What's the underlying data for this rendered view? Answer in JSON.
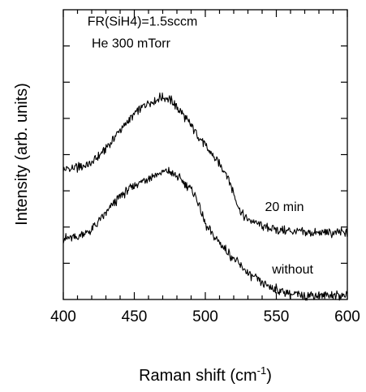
{
  "chart_data": {
    "type": "line",
    "xlabel": "Raman shift (cm",
    "xlabel_sup": "-1",
    "xlabel_close": ")",
    "ylabel": "Intensity (arb. units)",
    "xlim": [
      400,
      600
    ],
    "ylim": [
      0,
      1
    ],
    "x_ticks": [
      400,
      450,
      500,
      550,
      600
    ],
    "x_minor_step": 10,
    "y_tick_count": 8,
    "y_tick_labels_shown": false,
    "grid": false,
    "legend": "none",
    "annotations": [
      {
        "text": "FR(SiH4)=1.5sccm",
        "x": 417,
        "y": 0.945
      },
      {
        "text": "He 300 mTorr",
        "x": 420,
        "y": 0.87
      }
    ],
    "series": [
      {
        "name": "20 min",
        "label_pos": [
          542,
          0.305
        ],
        "x": [
          400,
          410,
          420,
          430,
          440,
          450,
          460,
          465,
          470,
          475,
          480,
          490,
          500,
          510,
          515,
          520,
          525,
          530,
          540,
          550,
          560,
          570,
          580,
          590,
          600
        ],
        "y": [
          0.445,
          0.455,
          0.47,
          0.52,
          0.585,
          0.64,
          0.68,
          0.69,
          0.7,
          0.69,
          0.665,
          0.6,
          0.53,
          0.465,
          0.435,
          0.365,
          0.3,
          0.275,
          0.255,
          0.24,
          0.235,
          0.23,
          0.23,
          0.23,
          0.23
        ]
      },
      {
        "name": "without",
        "label_pos": [
          547,
          0.09
        ],
        "x": [
          400,
          410,
          420,
          430,
          440,
          450,
          460,
          465,
          470,
          475,
          480,
          490,
          495,
          500,
          505,
          510,
          520,
          530,
          540,
          550,
          560,
          570,
          580,
          590,
          600
        ],
        "y": [
          0.21,
          0.215,
          0.24,
          0.3,
          0.355,
          0.395,
          0.42,
          0.43,
          0.44,
          0.44,
          0.425,
          0.38,
          0.335,
          0.26,
          0.225,
          0.195,
          0.14,
          0.09,
          0.055,
          0.035,
          0.02,
          0.015,
          0.015,
          0.015,
          0.012
        ]
      }
    ]
  }
}
